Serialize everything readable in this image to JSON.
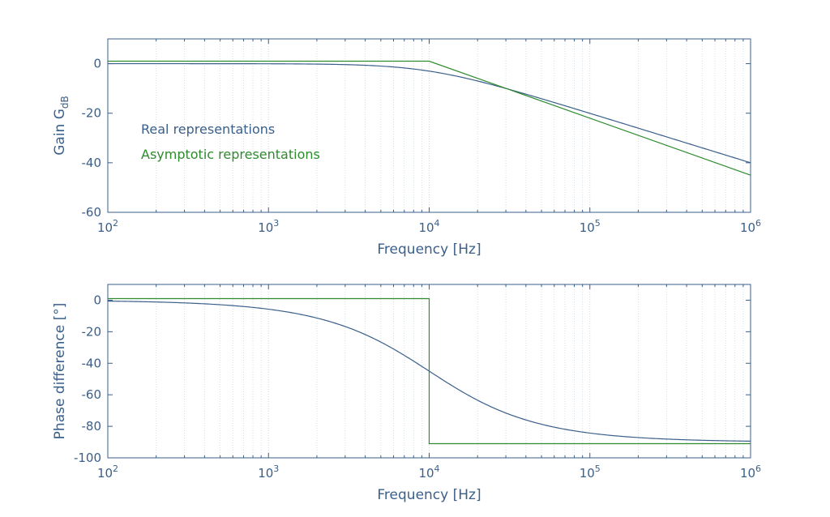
{
  "colors": {
    "real": "#3a5f8a",
    "asymptotic": "#2e8b2e",
    "axis": "#3a5f8a",
    "grid": "#c8d8e0"
  },
  "chart_data": [
    {
      "type": "line",
      "name": "gain",
      "xscale": "log",
      "xlim": [
        100,
        1000000
      ],
      "ylim": [
        -60,
        10
      ],
      "xlabel": "Frequency [Hz]",
      "ylabel": {
        "base": "Gain G",
        "sub": "dB"
      },
      "xticks": [
        {
          "base": "10",
          "exp": "2",
          "value": 100
        },
        {
          "base": "10",
          "exp": "3",
          "value": 1000
        },
        {
          "base": "10",
          "exp": "4",
          "value": 10000
        },
        {
          "base": "10",
          "exp": "5",
          "value": 100000
        },
        {
          "base": "10",
          "exp": "6",
          "value": 1000000
        }
      ],
      "yticks": [
        {
          "label": "0",
          "value": 0
        },
        {
          "label": "-20",
          "value": -20
        },
        {
          "label": "-40",
          "value": -40
        },
        {
          "label": "-60",
          "value": -60
        }
      ],
      "grid": "vertical-dotted",
      "legend": [
        {
          "label": "Real representations",
          "color_key": "real"
        },
        {
          "label": "Asymptotic representations",
          "color_key": "asymptotic"
        }
      ],
      "legend_position": "left",
      "series": [
        {
          "key": "real",
          "model": "first-order-lowpass-gain",
          "cutoff_hz": 10000
        },
        {
          "key": "asymptotic",
          "x": [
            100,
            10000,
            1000000
          ],
          "y": [
            1,
            1,
            -45
          ]
        }
      ]
    },
    {
      "type": "line",
      "name": "phase",
      "xscale": "log",
      "xlim": [
        100,
        1000000
      ],
      "ylim": [
        -100,
        10
      ],
      "xlabel": "Frequency [Hz]",
      "ylabel": {
        "base": "Phase difference [°]",
        "sub": ""
      },
      "xticks": [
        {
          "base": "10",
          "exp": "2",
          "value": 100
        },
        {
          "base": "10",
          "exp": "3",
          "value": 1000
        },
        {
          "base": "10",
          "exp": "4",
          "value": 10000
        },
        {
          "base": "10",
          "exp": "5",
          "value": 100000
        },
        {
          "base": "10",
          "exp": "6",
          "value": 1000000
        }
      ],
      "yticks": [
        {
          "label": "0",
          "value": 0
        },
        {
          "label": "-20",
          "value": -20
        },
        {
          "label": "-40",
          "value": -40
        },
        {
          "label": "-60",
          "value": -60
        },
        {
          "label": "-80",
          "value": -80
        },
        {
          "label": "-100",
          "value": -100
        }
      ],
      "grid": "vertical-dotted",
      "legend": [],
      "series": [
        {
          "key": "real",
          "model": "first-order-lowpass-phase",
          "cutoff_hz": 10000
        },
        {
          "key": "asymptotic",
          "x": [
            100,
            10000,
            10000,
            1000000
          ],
          "y": [
            1,
            1,
            -91,
            -91
          ]
        }
      ]
    }
  ]
}
